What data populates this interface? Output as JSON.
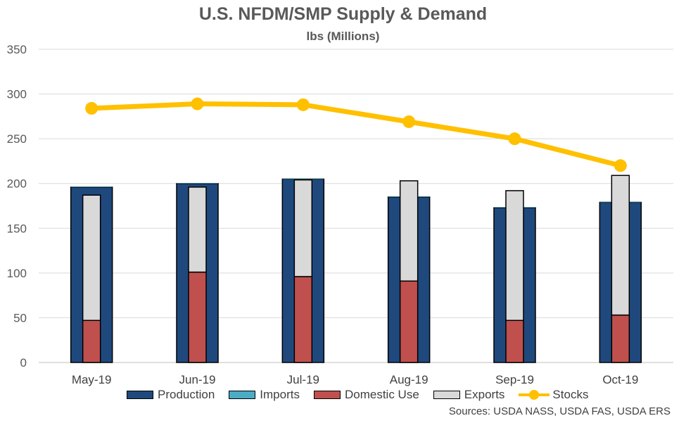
{
  "chart_data": {
    "type": "bar",
    "title": "U.S. NFDM/SMP Supply & Demand",
    "subtitle": "lbs (Millions)",
    "categories": [
      "May-19",
      "Jun-19",
      "Jul-19",
      "Aug-19",
      "Sep-19",
      "Oct-19"
    ],
    "ylim": [
      0,
      350
    ],
    "yticks": [
      0,
      50,
      100,
      150,
      200,
      250,
      300,
      350
    ],
    "grid": true,
    "legend_position": "bottom",
    "series": [
      {
        "name": "Production",
        "type": "bar",
        "color": "#1F497D",
        "values": [
          196,
          200,
          205,
          185,
          173,
          179
        ]
      },
      {
        "name": "Imports",
        "type": "bar",
        "color": "#4BACC6",
        "values": [
          0.5,
          0.5,
          0.5,
          0.5,
          0.5,
          0.5
        ]
      },
      {
        "name": "Domestic Use",
        "type": "stacked-bar",
        "color": "#C0504D",
        "values": [
          47,
          101,
          96,
          91,
          47,
          53
        ]
      },
      {
        "name": "Exports",
        "type": "stacked-bar",
        "color": "#D9D9D9",
        "values": [
          140,
          95,
          108,
          112,
          145,
          156
        ]
      },
      {
        "name": "Stocks",
        "type": "line",
        "color": "#FFC000",
        "values": [
          284,
          289,
          288,
          269,
          250,
          220
        ]
      }
    ]
  },
  "source_text": "Sources: USDA NASS, USDA FAS, USDA ERS"
}
